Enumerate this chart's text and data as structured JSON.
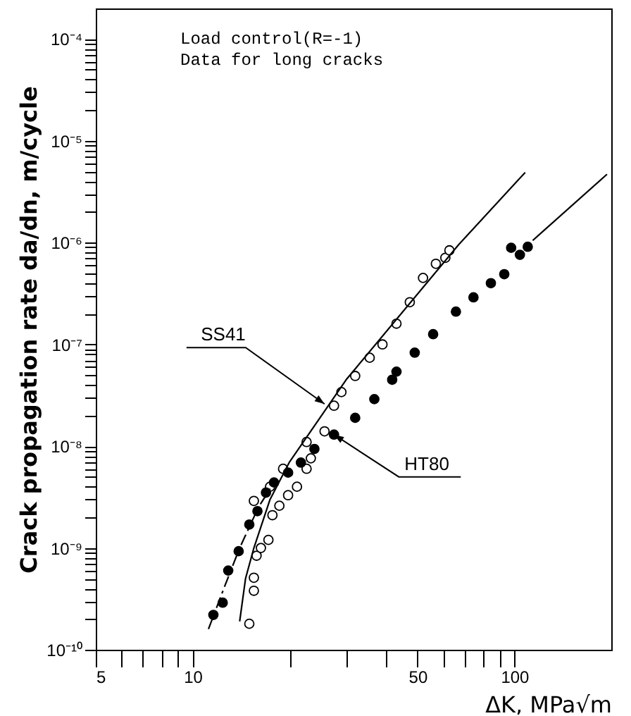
{
  "chart_data": {
    "type": "scatter",
    "xlabel": "ΔK,   MPa√m",
    "ylabel": "Crack propagation rate  da/dn,  m/cycle",
    "log": "xy",
    "grid": false,
    "marker": "circle",
    "xlim": [
      5,
      200
    ],
    "ylim": [
      1e-10,
      0.0002
    ],
    "xticks": [
      5,
      {
        "value": 6,
        "label": null
      },
      {
        "value": 7,
        "label": null
      },
      {
        "value": 8,
        "label": null
      },
      {
        "value": 9,
        "label": null
      },
      10,
      {
        "value": 20,
        "label": null
      },
      {
        "value": 30,
        "label": null
      },
      {
        "value": 40,
        "label": null
      },
      50,
      {
        "value": 60,
        "label": null
      },
      {
        "value": 70,
        "label": null
      },
      {
        "value": 80,
        "label": null
      },
      {
        "value": 90,
        "label": null
      },
      100
    ],
    "yticks": [
      {
        "value": 1e-10,
        "label": "10⁻¹⁰"
      },
      {
        "value": 2e-10,
        "label": null
      },
      {
        "value": 3e-10,
        "label": null
      },
      {
        "value": 4e-10,
        "label": null
      },
      {
        "value": 5e-10,
        "label": null
      },
      {
        "value": 6e-10,
        "label": null
      },
      {
        "value": 7e-10,
        "label": null
      },
      {
        "value": 8e-10,
        "label": null
      },
      {
        "value": 9e-10,
        "label": null
      },
      {
        "value": 1e-09,
        "label": "10⁻⁹"
      },
      {
        "value": 2e-09,
        "label": null
      },
      {
        "value": 3e-09,
        "label": null
      },
      {
        "value": 4e-09,
        "label": null
      },
      {
        "value": 5e-09,
        "label": null
      },
      {
        "value": 6e-09,
        "label": null
      },
      {
        "value": 7e-09,
        "label": null
      },
      {
        "value": 8e-09,
        "label": null
      },
      {
        "value": 9e-09,
        "label": null
      },
      {
        "value": 1e-08,
        "label": "10⁻⁸"
      },
      {
        "value": 2e-08,
        "label": null
      },
      {
        "value": 3e-08,
        "label": null
      },
      {
        "value": 4e-08,
        "label": null
      },
      {
        "value": 5e-08,
        "label": null
      },
      {
        "value": 6e-08,
        "label": null
      },
      {
        "value": 7e-08,
        "label": null
      },
      {
        "value": 8e-08,
        "label": null
      },
      {
        "value": 9e-08,
        "label": null
      },
      {
        "value": 1e-07,
        "label": "10⁻⁷"
      },
      {
        "value": 2e-07,
        "label": null
      },
      {
        "value": 3e-07,
        "label": null
      },
      {
        "value": 4e-07,
        "label": null
      },
      {
        "value": 5e-07,
        "label": null
      },
      {
        "value": 6e-07,
        "label": null
      },
      {
        "value": 7e-07,
        "label": null
      },
      {
        "value": 8e-07,
        "label": null
      },
      {
        "value": 9e-07,
        "label": null
      },
      {
        "value": 1e-06,
        "label": "10⁻⁶"
      },
      {
        "value": 2e-06,
        "label": null
      },
      {
        "value": 3e-06,
        "label": null
      },
      {
        "value": 4e-06,
        "label": null
      },
      {
        "value": 5e-06,
        "label": null
      },
      {
        "value": 6e-06,
        "label": null
      },
      {
        "value": 7e-06,
        "label": null
      },
      {
        "value": 8e-06,
        "label": null
      },
      {
        "value": 9e-06,
        "label": null
      },
      {
        "value": 1e-05,
        "label": "10⁻⁵"
      },
      {
        "value": 2e-05,
        "label": null
      },
      {
        "value": 3e-05,
        "label": null
      },
      {
        "value": 4e-05,
        "label": null
      },
      {
        "value": 5e-05,
        "label": null
      },
      {
        "value": 6e-05,
        "label": null
      },
      {
        "value": 7e-05,
        "label": null
      },
      {
        "value": 8e-05,
        "label": null
      },
      {
        "value": 9e-05,
        "label": null
      },
      {
        "value": 0.0001,
        "label": "10⁻⁴"
      }
    ],
    "annotations": [
      "Load control(R=-1)",
      "Data for long cracks",
      {
        "text": "SS41",
        "x": 25.7,
        "y": 2.6e-08
      },
      {
        "text": "HT80",
        "x": 27.5,
        "y": 1.3e-08
      }
    ],
    "series": [
      {
        "color": "#ffffff",
        "x": [
          15.0,
          15.5,
          15.5,
          15.8,
          16.3,
          17.2,
          17.7,
          18.6,
          15.5,
          19.8,
          17.4,
          21.1,
          19.1,
          22.6,
          23.3,
          22.6,
          25.7,
          27.5,
          29.0,
          32.0,
          35.5,
          38.9,
          43.0,
          47.3,
          52.0,
          57.0,
          61.0,
          62.8
        ],
        "values": [
          1.8e-10,
          3.8e-10,
          5.1e-10,
          8.4e-10,
          1e-09,
          1.2e-09,
          2.1e-09,
          2.6e-09,
          2.9e-09,
          3.3e-09,
          4e-09,
          4e-09,
          6e-09,
          6e-09,
          7.6e-09,
          1.1e-08,
          1.4e-08,
          2.5e-08,
          3.4e-08,
          4.9e-08,
          7.4e-08,
          1e-07,
          1.6e-07,
          2.6e-07,
          4.5e-07,
          6.2e-07,
          7.1e-07,
          8.4e-07
        ]
      },
      {
        "color": "#000000",
        "x": [
          11.6,
          12.4,
          12.9,
          13.9,
          15.0,
          15.9,
          16.9,
          17.9,
          19.8,
          21.7,
          23.9,
          27.5,
          32.0,
          36.7,
          41.7,
          43.0,
          49.0,
          55.9,
          65.8,
          74.6,
          84.5,
          93.0,
          97.7,
          104,
          110
        ],
        "values": [
          2.2e-10,
          2.9e-10,
          6e-10,
          9.3e-10,
          1.7e-09,
          2.3e-09,
          3.5e-09,
          4.4e-09,
          5.5e-09,
          6.9e-09,
          9.4e-09,
          1.3e-08,
          1.9e-08,
          2.9e-08,
          4.5e-08,
          5.4e-08,
          8.3e-08,
          1.26e-07,
          2.1e-07,
          2.9e-07,
          4e-07,
          4.9e-07,
          8.9e-07,
          7.6e-07,
          9.1e-07
        ]
      },
      {
        "type": "line",
        "color": "#000000",
        "marker": "none",
        "line_style": "solid",
        "x": [
          14.0,
          14.6,
          15.5,
          17.4,
          20.0,
          30.0,
          67.0,
          108
        ],
        "values": [
          1.9e-10,
          5e-10,
          1e-09,
          3e-09,
          7e-09,
          4.5e-08,
          9.5e-07,
          4.9e-06
        ]
      },
      {
        "type": "line",
        "color": "#000000",
        "marker": "none",
        "line_style": "dashed",
        "x": [
          11.2,
          12.5,
          14.0,
          16.0,
          18.0
        ],
        "values": [
          1.6e-10,
          4e-10,
          1e-09,
          2.5e-09,
          4.5e-09
        ]
      },
      {
        "type": "line",
        "color": "#000000",
        "marker": "none",
        "line_style": "solid",
        "x": [
          114,
          194
        ],
        "values": [
          1.05e-06,
          4.7e-06
        ]
      }
    ]
  }
}
